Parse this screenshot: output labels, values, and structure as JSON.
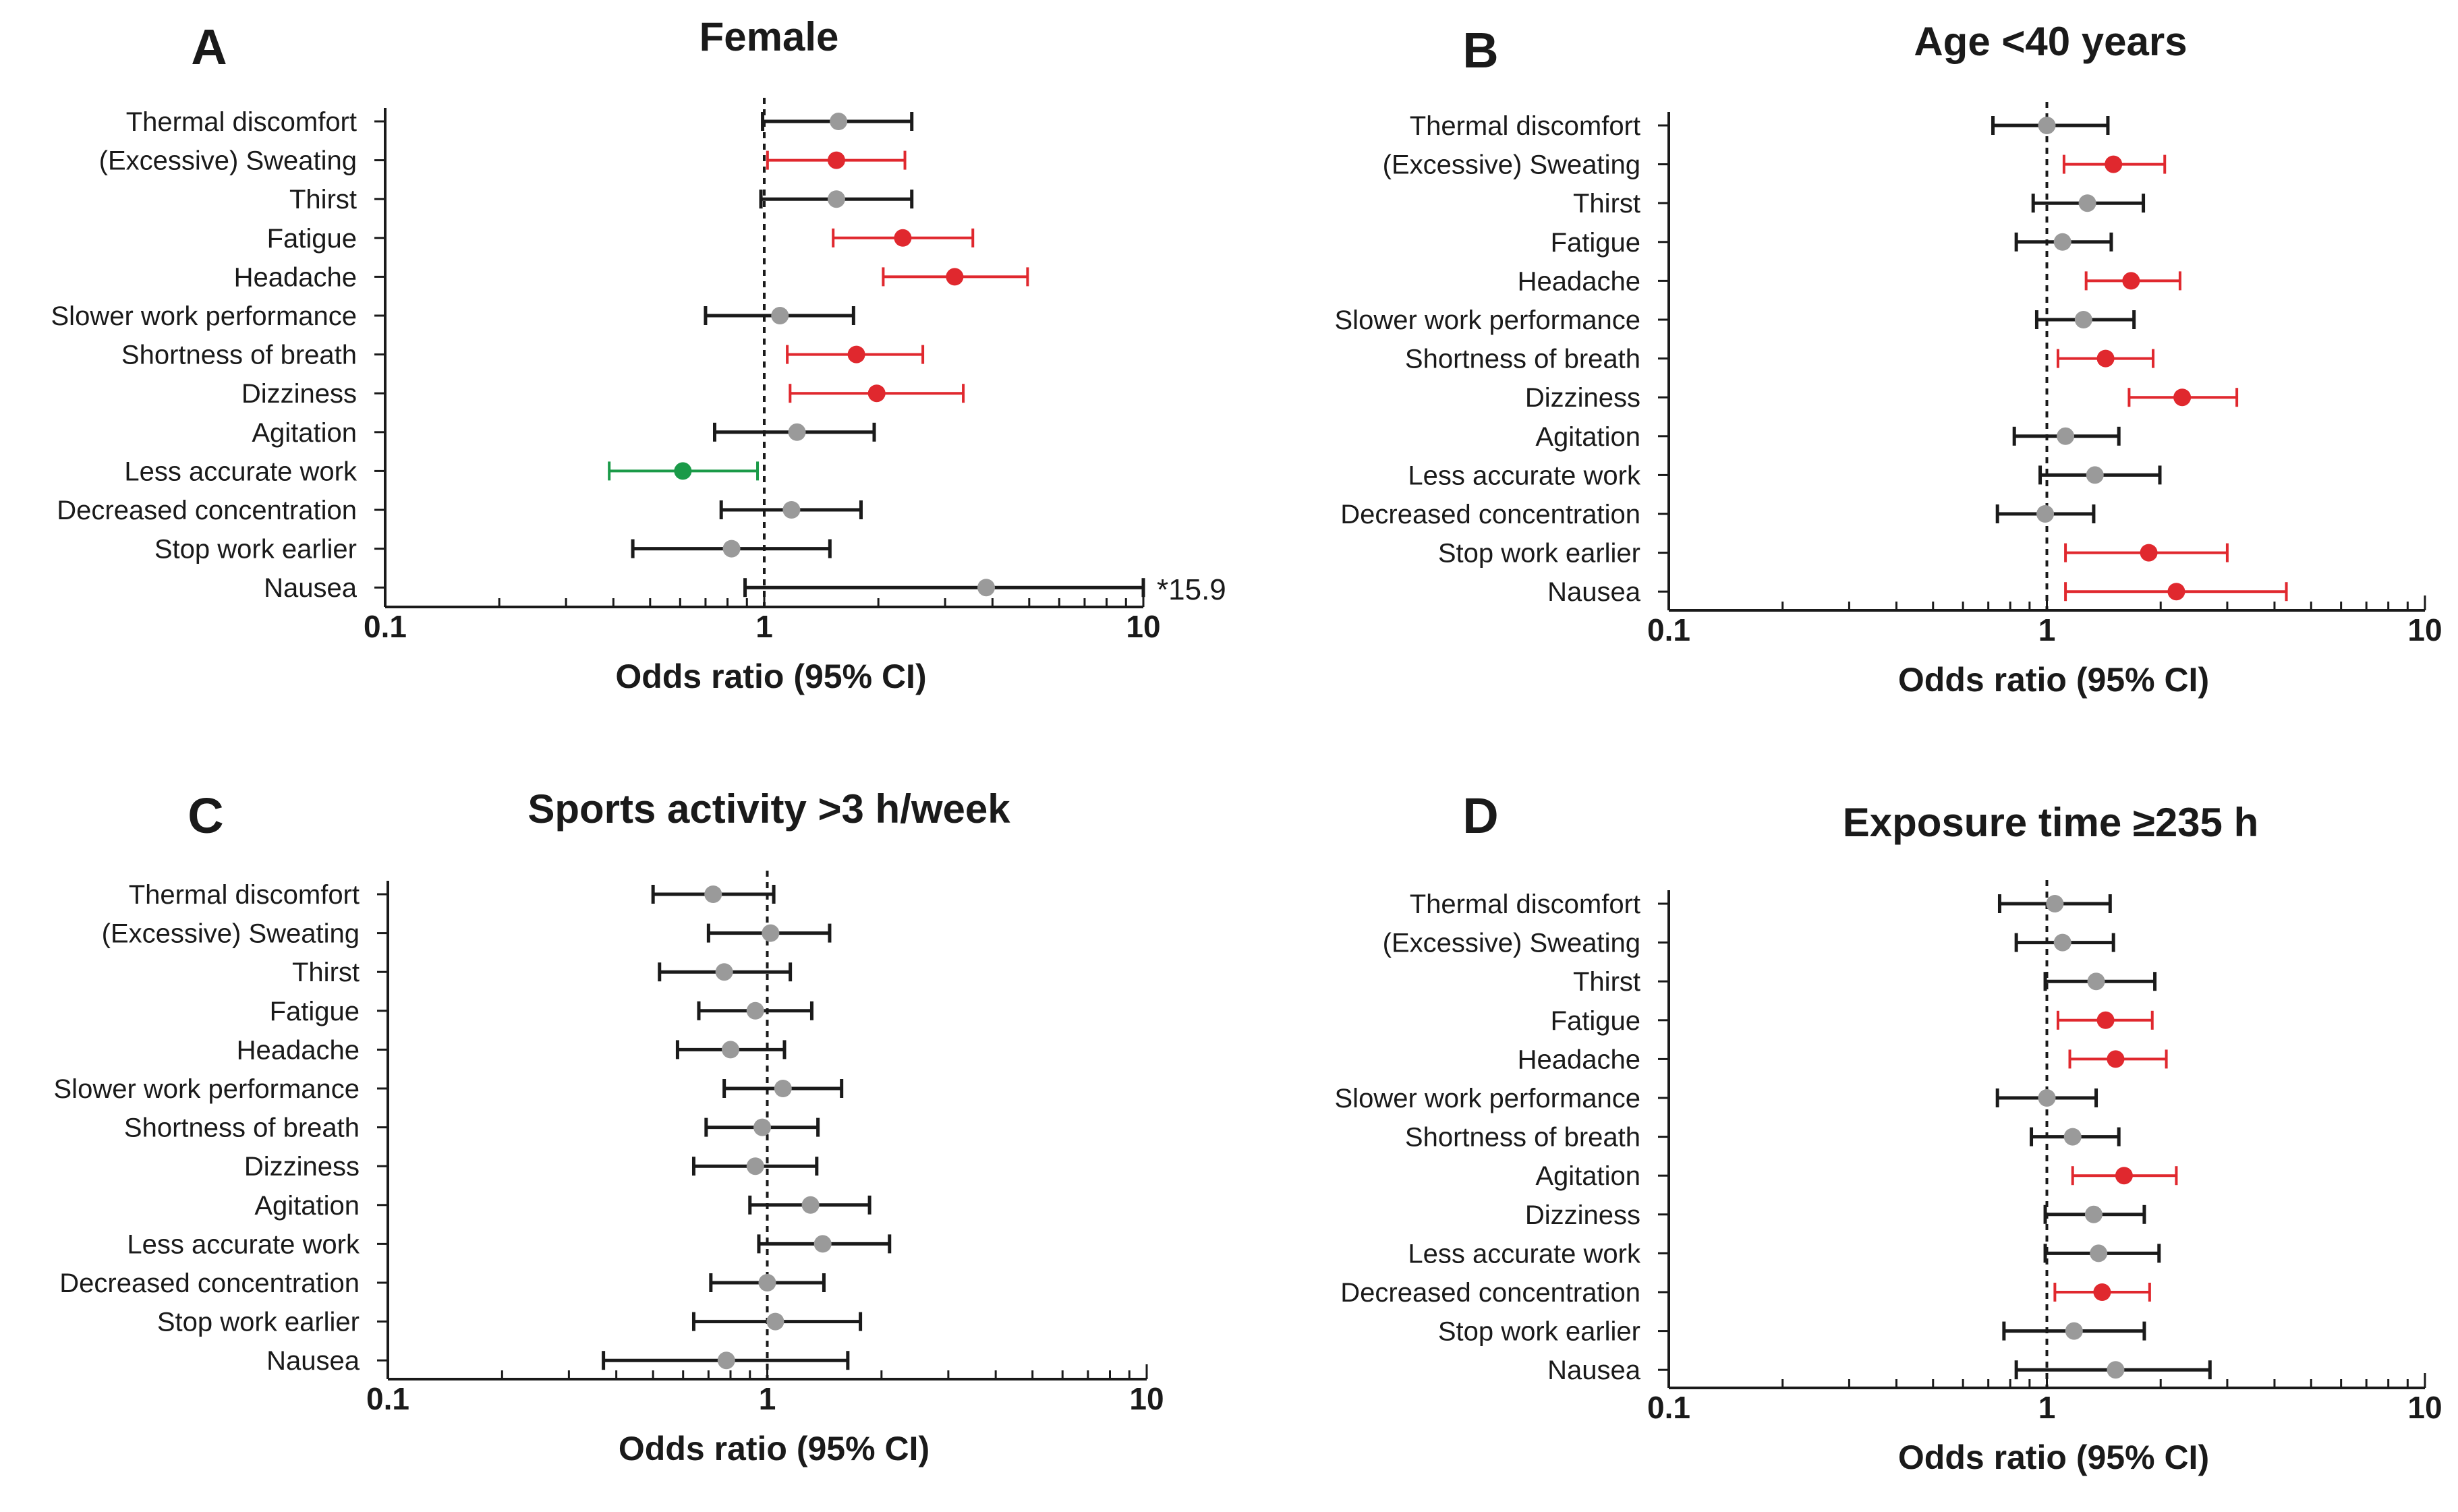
{
  "colors": {
    "significant_increase": "#e0282e",
    "significant_decrease": "#1a9a48",
    "not_significant": "#9a9a9a",
    "axis": "#1a1a1a"
  },
  "chart_data": [
    {
      "panel": "A",
      "type": "forest",
      "title": "Female",
      "xlabel": "Odds ratio (95%  CI)",
      "xscale": "log",
      "xlim": [
        0.1,
        10
      ],
      "xticks": [
        "0.1",
        "1",
        "10"
      ],
      "reference_line": 1,
      "categories": [
        "Thermal discomfort",
        "(Excessive) Sweating",
        "Thirst",
        "Fatigue",
        "Headache",
        "Slower work performance",
        "Shortness of breath",
        "Dizziness",
        "Agitation",
        "Less accurate work",
        "Decreased concentration",
        "Stop work earlier",
        "Nausea"
      ],
      "or": [
        1.57,
        1.55,
        1.55,
        2.32,
        3.18,
        1.1,
        1.75,
        1.98,
        1.22,
        0.61,
        1.18,
        0.82,
        3.85
      ],
      "lower": [
        0.99,
        1.02,
        0.98,
        1.52,
        2.06,
        0.7,
        1.15,
        1.17,
        0.74,
        0.39,
        0.77,
        0.45,
        0.89
      ],
      "upper": [
        2.45,
        2.35,
        2.45,
        3.55,
        4.95,
        1.72,
        2.62,
        3.35,
        1.95,
        0.96,
        1.8,
        1.49,
        15.9
      ],
      "status": [
        "ns",
        "up",
        "ns",
        "up",
        "up",
        "ns",
        "up",
        "up",
        "ns",
        "down",
        "ns",
        "ns",
        "ns"
      ],
      "annotation": "*15.9"
    },
    {
      "panel": "B",
      "type": "forest",
      "title": "Age <40 years",
      "xlabel": "Odds ratio (95%  CI)",
      "xscale": "log",
      "xlim": [
        0.1,
        10
      ],
      "xticks": [
        "0.1",
        "1",
        "10"
      ],
      "reference_line": 1,
      "categories": [
        "Thermal discomfort",
        "(Excessive) Sweating",
        "Thirst",
        "Fatigue",
        "Headache",
        "Slower work performance",
        "Shortness of breath",
        "Dizziness",
        "Agitation",
        "Less accurate work",
        "Decreased concentration",
        "Stop work earlier",
        "Nausea"
      ],
      "or": [
        1.0,
        1.5,
        1.28,
        1.1,
        1.67,
        1.25,
        1.43,
        2.28,
        1.12,
        1.34,
        0.99,
        1.86,
        2.2
      ],
      "lower": [
        0.72,
        1.11,
        0.92,
        0.83,
        1.27,
        0.94,
        1.07,
        1.65,
        0.82,
        0.96,
        0.74,
        1.12,
        1.12
      ],
      "upper": [
        1.45,
        2.05,
        1.8,
        1.48,
        2.25,
        1.7,
        1.91,
        3.18,
        1.55,
        1.99,
        1.33,
        3.0,
        4.3
      ],
      "status": [
        "ns",
        "up",
        "ns",
        "ns",
        "up",
        "ns",
        "up",
        "up",
        "ns",
        "ns",
        "ns",
        "up",
        "up"
      ]
    },
    {
      "panel": "C",
      "type": "forest",
      "title": "Sports activity >3 h/week",
      "xlabel": "Odds ratio (95%  CI)",
      "xscale": "log",
      "xlim": [
        0.1,
        10
      ],
      "xticks": [
        "0.1",
        "1",
        "10"
      ],
      "reference_line": 1,
      "categories": [
        "Thermal discomfort",
        "(Excessive) Sweating",
        "Thirst",
        "Fatigue",
        "Headache",
        "Slower work performance",
        "Shortness of breath",
        "Dizziness",
        "Agitation",
        "Less accurate work",
        "Decreased concentration",
        "Stop work earlier",
        "Nausea"
      ],
      "or": [
        0.72,
        1.02,
        0.77,
        0.93,
        0.8,
        1.1,
        0.97,
        0.93,
        1.3,
        1.4,
        1.0,
        1.05,
        0.78
      ],
      "lower": [
        0.5,
        0.7,
        0.52,
        0.66,
        0.58,
        0.77,
        0.69,
        0.64,
        0.9,
        0.95,
        0.71,
        0.64,
        0.37
      ],
      "upper": [
        1.04,
        1.46,
        1.15,
        1.31,
        1.11,
        1.57,
        1.36,
        1.35,
        1.86,
        2.1,
        1.41,
        1.76,
        1.63
      ],
      "status": [
        "ns",
        "ns",
        "ns",
        "ns",
        "ns",
        "ns",
        "ns",
        "ns",
        "ns",
        "ns",
        "ns",
        "ns",
        "ns"
      ]
    },
    {
      "panel": "D",
      "type": "forest",
      "title": "Exposure time  ≥235 h",
      "xlabel": "Odds ratio (95%  CI)",
      "xscale": "log",
      "xlim": [
        0.1,
        10
      ],
      "xticks": [
        "0.1",
        "1",
        "10"
      ],
      "reference_line": 1,
      "categories": [
        "Thermal discomfort",
        "(Excessive) Sweating",
        "Thirst",
        "Fatigue",
        "Headache",
        "Slower work performance",
        "Shortness of breath",
        "Agitation",
        "Dizziness",
        "Less accurate work",
        "Decreased concentration",
        "Stop work earlier",
        "Nausea"
      ],
      "or": [
        1.05,
        1.1,
        1.35,
        1.43,
        1.52,
        1.0,
        1.17,
        1.6,
        1.33,
        1.37,
        1.4,
        1.18,
        1.52
      ],
      "lower": [
        0.75,
        0.83,
        0.99,
        1.07,
        1.15,
        0.74,
        0.91,
        1.17,
        0.99,
        0.99,
        1.05,
        0.77,
        0.83
      ],
      "upper": [
        1.47,
        1.5,
        1.93,
        1.9,
        2.07,
        1.35,
        1.55,
        2.2,
        1.81,
        1.98,
        1.87,
        1.81,
        2.7
      ],
      "status": [
        "ns",
        "ns",
        "ns",
        "up",
        "up",
        "ns",
        "ns",
        "up",
        "ns",
        "ns",
        "up",
        "ns",
        "ns"
      ]
    }
  ]
}
